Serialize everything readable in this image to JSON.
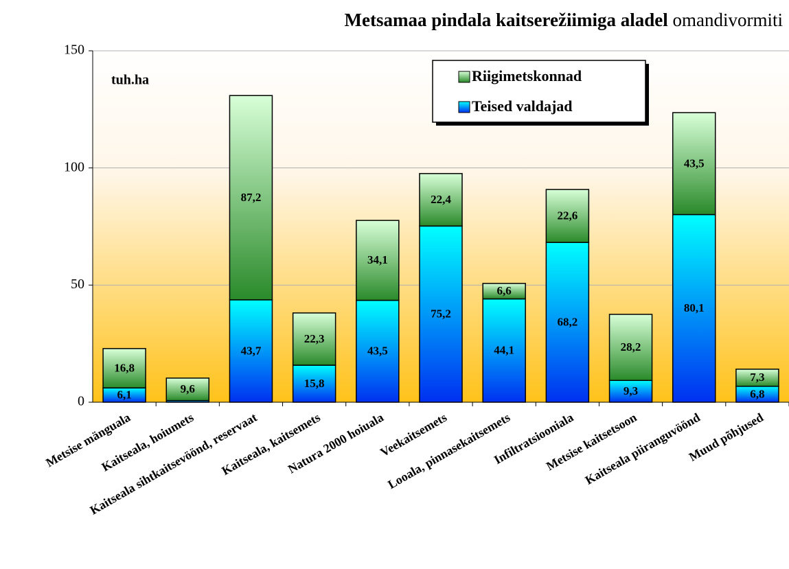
{
  "chart_data": {
    "type": "stacked_bar",
    "title": "Metsamaa pindala kaitserežiimiga aladel",
    "subtitle": "omandivormiti",
    "unit_label": "tuh.ha",
    "categories": [
      "Metsise mänguala",
      "Kaitseala, hoiumets",
      "Kaitseala sihtkaitsevöönd, reservaat",
      "Kaitseala, kaitsemets",
      "Natura 2000 hoiuala",
      "Veekaitsemets",
      "Looala, pinnasekaitsemets",
      "Infiltratsiooniala",
      "Metsise kaitsetsoon",
      "Kaitseala piiranguvöönd",
      "Muud põhjused"
    ],
    "series": [
      {
        "name": "Teised valdajad",
        "color": [
          "#00ffff",
          "#0030f0"
        ],
        "values": [
          6.1,
          0.7,
          43.7,
          15.8,
          43.5,
          75.2,
          44.1,
          68.2,
          9.3,
          80.1,
          6.8
        ],
        "value_labels": [
          "6,1",
          null,
          "43,7",
          "15,8",
          "43,5",
          "75,2",
          "44,1",
          "68,2",
          "9,3",
          "80,1",
          "6,8"
        ]
      },
      {
        "name": "Riigimetskonnad",
        "color": [
          "#d8ffd8",
          "#2a8a2a"
        ],
        "values": [
          16.8,
          9.6,
          87.2,
          22.3,
          34.1,
          22.4,
          6.6,
          22.6,
          28.2,
          43.5,
          7.3
        ],
        "value_labels": [
          "16,8",
          "9,6",
          "87,2",
          "22,3",
          "34,1",
          "22,4",
          "6,6",
          "22,6",
          "28,2",
          "43,5",
          "7,3"
        ]
      }
    ],
    "ylim": [
      0,
      150
    ],
    "yticks": [
      0,
      50,
      100,
      150
    ],
    "grid": true,
    "legend": "top-right"
  }
}
